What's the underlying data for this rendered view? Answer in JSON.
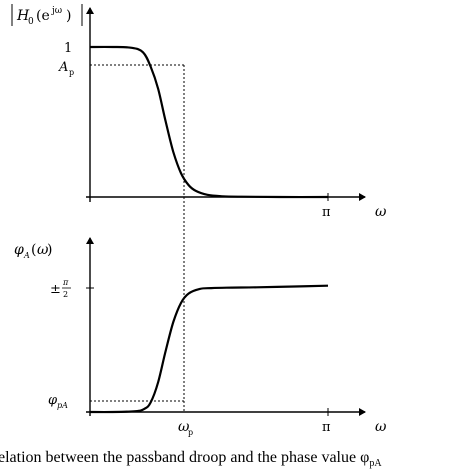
{
  "chart_data": [
    {
      "type": "line",
      "title": "",
      "ylabel": "|H0(e^jω)|",
      "xlabel": "ω",
      "x_ticks": [
        {
          "value": 0.8,
          "label": "ωp"
        },
        {
          "value": 3.14159,
          "label": "π"
        }
      ],
      "y_ticks": [
        {
          "value": 1,
          "label": "1"
        },
        {
          "value": 0.87,
          "label": "Ap"
        }
      ],
      "xlim": [
        0,
        3.6
      ],
      "ylim": [
        0,
        1.12
      ],
      "series": [
        {
          "x": [
            0,
            0.3,
            0.55,
            0.7,
            0.8,
            0.9,
            1.0,
            1.1,
            1.2,
            1.3,
            1.4,
            1.55,
            1.75,
            2.0,
            2.5,
            3.14159
          ],
          "values": [
            1.0,
            1.0,
            0.995,
            0.965,
            0.87,
            0.72,
            0.5,
            0.3,
            0.16,
            0.08,
            0.04,
            0.015,
            0.005,
            0.002,
            0.0,
            0.0
          ]
        }
      ]
    },
    {
      "type": "line",
      "title": "",
      "ylabel": "φA(ω)",
      "xlabel": "ω",
      "x_ticks": [
        {
          "value": 0.8,
          "label": "ωp"
        },
        {
          "value": 3.14159,
          "label": "π"
        }
      ],
      "y_ticks": [
        {
          "value": 1.5708,
          "label": "±π/2"
        },
        {
          "value": 0.12,
          "label": "φpA"
        }
      ],
      "xlim": [
        0,
        3.6
      ],
      "ylim": [
        0,
        1.8
      ],
      "series": [
        {
          "x": [
            0,
            0.3,
            0.6,
            0.72,
            0.8,
            0.9,
            1.0,
            1.1,
            1.2,
            1.3,
            1.45,
            1.6,
            1.8,
            2.2,
            2.7,
            3.14159
          ],
          "values": [
            0.0,
            0.0,
            0.01,
            0.04,
            0.12,
            0.38,
            0.78,
            1.14,
            1.38,
            1.5,
            1.56,
            1.57,
            1.575,
            1.58,
            1.59,
            1.6
          ]
        }
      ]
    }
  ],
  "caption": "elation between the passband droop and the phase value φpA",
  "colors": {
    "line": "#000000",
    "background": "#ffffff"
  }
}
